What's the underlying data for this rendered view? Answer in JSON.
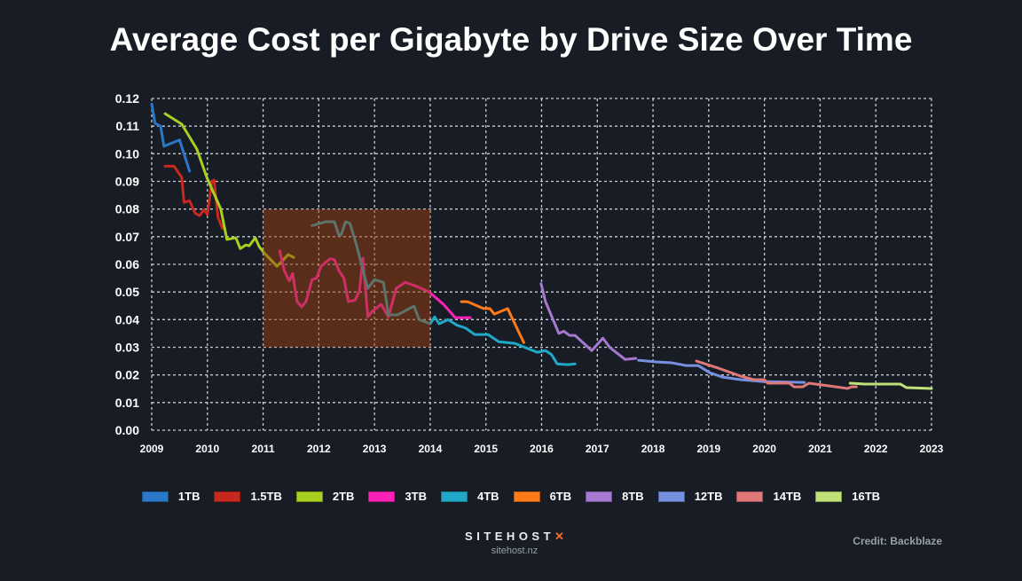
{
  "chart_data": {
    "type": "line",
    "title": "Average Cost per Gigabyte by Drive Size Over Time",
    "xlabel": "",
    "ylabel": "",
    "xlim": [
      2009,
      2023
    ],
    "ylim": [
      0,
      0.12
    ],
    "x_ticks": [
      "2009",
      "2010",
      "2011",
      "2012",
      "2013",
      "2014",
      "2015",
      "2016",
      "2017",
      "2018",
      "2019",
      "2020",
      "2021",
      "2022",
      "2023"
    ],
    "y_ticks": [
      "0.00",
      "0.01",
      "0.02",
      "0.03",
      "0.04",
      "0.05",
      "0.06",
      "0.07",
      "0.08",
      "0.09",
      "0.10",
      "0.11",
      "0.12"
    ],
    "grid": true,
    "legend_position": "bottom",
    "highlight_region": {
      "x": [
        2011,
        2014
      ],
      "y": [
        0.03,
        0.08
      ],
      "color": "#9d3e0f"
    },
    "series": [
      {
        "name": "1TB",
        "color": "#2b78c8",
        "points": [
          [
            2009.0,
            0.118
          ],
          [
            2009.06,
            0.111
          ],
          [
            2009.16,
            0.11
          ],
          [
            2009.22,
            0.1027
          ],
          [
            2009.5,
            0.105
          ],
          [
            2009.68,
            0.0937
          ]
        ]
      },
      {
        "name": "1.5TB",
        "color": "#c8281e",
        "points": [
          [
            2009.24,
            0.0955
          ],
          [
            2009.4,
            0.0955
          ],
          [
            2009.54,
            0.0914
          ],
          [
            2009.58,
            0.0824
          ],
          [
            2009.68,
            0.083
          ],
          [
            2009.78,
            0.0785
          ],
          [
            2009.86,
            0.0776
          ],
          [
            2009.94,
            0.0798
          ],
          [
            2010.0,
            0.078
          ],
          [
            2010.08,
            0.09
          ],
          [
            2010.12,
            0.0905
          ],
          [
            2010.19,
            0.077
          ],
          [
            2010.27,
            0.073
          ]
        ]
      },
      {
        "name": "2TB",
        "color": "#a8d020",
        "points": [
          [
            2009.24,
            0.1145
          ],
          [
            2009.54,
            0.1107
          ],
          [
            2009.81,
            0.1017
          ],
          [
            2009.99,
            0.0914
          ],
          [
            2010.24,
            0.08
          ],
          [
            2010.35,
            0.069
          ],
          [
            2010.51,
            0.0696
          ],
          [
            2010.59,
            0.0657
          ],
          [
            2010.69,
            0.067
          ],
          [
            2010.75,
            0.0667
          ],
          [
            2010.86,
            0.0696
          ],
          [
            2010.93,
            0.0664
          ],
          [
            2011.02,
            0.0641
          ],
          [
            2011.25,
            0.0593
          ],
          [
            2011.45,
            0.0635
          ],
          [
            2011.55,
            0.0625
          ]
        ]
      },
      {
        "name": "3TB",
        "color": "#ff20b8",
        "points": [
          [
            2011.3,
            0.0648
          ],
          [
            2011.38,
            0.0577
          ],
          [
            2011.47,
            0.054
          ],
          [
            2011.53,
            0.0567
          ],
          [
            2011.61,
            0.0465
          ],
          [
            2011.69,
            0.0446
          ],
          [
            2011.77,
            0.0465
          ],
          [
            2011.88,
            0.0545
          ],
          [
            2011.96,
            0.055
          ],
          [
            2012.04,
            0.0593
          ],
          [
            2012.2,
            0.062
          ],
          [
            2012.28,
            0.0617
          ],
          [
            2012.36,
            0.0577
          ],
          [
            2012.45,
            0.055
          ],
          [
            2012.53,
            0.0465
          ],
          [
            2012.65,
            0.047
          ],
          [
            2012.73,
            0.0504
          ],
          [
            2012.79,
            0.0622
          ],
          [
            2012.88,
            0.041
          ],
          [
            2012.96,
            0.043
          ],
          [
            2013.12,
            0.0455
          ],
          [
            2013.25,
            0.041
          ],
          [
            2013.39,
            0.0513
          ],
          [
            2013.55,
            0.0535
          ],
          [
            2013.76,
            0.052
          ],
          [
            2013.98,
            0.05
          ],
          [
            2014.24,
            0.0455
          ],
          [
            2014.45,
            0.0407
          ],
          [
            2014.72,
            0.0407
          ]
        ]
      },
      {
        "name": "4TB",
        "color": "#1fa8c8",
        "points": [
          [
            2011.88,
            0.074
          ],
          [
            2012.12,
            0.0754
          ],
          [
            2012.28,
            0.0754
          ],
          [
            2012.36,
            0.0706
          ],
          [
            2012.4,
            0.0706
          ],
          [
            2012.48,
            0.0754
          ],
          [
            2012.56,
            0.0748
          ],
          [
            2012.67,
            0.0674
          ],
          [
            2012.88,
            0.0513
          ],
          [
            2013.0,
            0.0545
          ],
          [
            2013.16,
            0.0535
          ],
          [
            2013.25,
            0.0417
          ],
          [
            2013.41,
            0.0417
          ],
          [
            2013.71,
            0.0449
          ],
          [
            2013.8,
            0.04
          ],
          [
            2014.0,
            0.0385
          ],
          [
            2014.08,
            0.041
          ],
          [
            2014.16,
            0.0385
          ],
          [
            2014.32,
            0.04
          ],
          [
            2014.48,
            0.038
          ],
          [
            2014.64,
            0.0369
          ],
          [
            2014.8,
            0.0346
          ],
          [
            2015.04,
            0.0346
          ],
          [
            2015.23,
            0.032
          ],
          [
            2015.52,
            0.0314
          ],
          [
            2015.92,
            0.0282
          ],
          [
            2016.07,
            0.0288
          ],
          [
            2016.18,
            0.0273
          ],
          [
            2016.28,
            0.024
          ],
          [
            2016.47,
            0.0237
          ],
          [
            2016.6,
            0.024
          ]
        ]
      },
      {
        "name": "6TB",
        "color": "#ff7b1a",
        "points": [
          [
            2014.56,
            0.0465
          ],
          [
            2014.67,
            0.0465
          ],
          [
            2014.96,
            0.044
          ],
          [
            2015.07,
            0.044
          ],
          [
            2015.15,
            0.042
          ],
          [
            2015.39,
            0.044
          ],
          [
            2015.68,
            0.0317
          ]
        ]
      },
      {
        "name": "8TB",
        "color": "#a878d0",
        "points": [
          [
            2015.99,
            0.053
          ],
          [
            2016.07,
            0.0465
          ],
          [
            2016.31,
            0.035
          ],
          [
            2016.4,
            0.0358
          ],
          [
            2016.5,
            0.0343
          ],
          [
            2016.6,
            0.0343
          ],
          [
            2016.9,
            0.0288
          ],
          [
            2017.1,
            0.0333
          ],
          [
            2017.23,
            0.0298
          ],
          [
            2017.5,
            0.0256
          ],
          [
            2017.69,
            0.026
          ]
        ]
      },
      {
        "name": "12TB",
        "color": "#7890e0",
        "points": [
          [
            2017.74,
            0.0253
          ],
          [
            2018.06,
            0.0247
          ],
          [
            2018.33,
            0.0244
          ],
          [
            2018.59,
            0.0234
          ],
          [
            2018.81,
            0.0234
          ],
          [
            2019.02,
            0.0208
          ],
          [
            2019.25,
            0.0192
          ],
          [
            2019.57,
            0.0183
          ],
          [
            2019.97,
            0.0176
          ],
          [
            2020.72,
            0.0173
          ]
        ]
      },
      {
        "name": "14TB",
        "color": "#e07878",
        "points": [
          [
            2018.78,
            0.025
          ],
          [
            2019.18,
            0.0224
          ],
          [
            2019.57,
            0.0196
          ],
          [
            2019.81,
            0.0183
          ],
          [
            2020.0,
            0.0183
          ],
          [
            2020.06,
            0.017
          ],
          [
            2020.45,
            0.017
          ],
          [
            2020.53,
            0.0157
          ],
          [
            2020.69,
            0.0157
          ],
          [
            2020.8,
            0.017
          ],
          [
            2021.17,
            0.016
          ],
          [
            2021.49,
            0.0151
          ],
          [
            2021.57,
            0.0157
          ],
          [
            2021.65,
            0.0157
          ]
        ]
      },
      {
        "name": "16TB",
        "color": "#c0e078",
        "points": [
          [
            2021.54,
            0.017
          ],
          [
            2021.8,
            0.0167
          ],
          [
            2022.44,
            0.0167
          ],
          [
            2022.55,
            0.0154
          ],
          [
            2023.0,
            0.0151
          ]
        ]
      }
    ]
  },
  "footer": {
    "brand_name": "SITEHOST",
    "brand_mark": "✕",
    "brand_url": "sitehost.nz",
    "credit": "Credit: Backblaze"
  }
}
